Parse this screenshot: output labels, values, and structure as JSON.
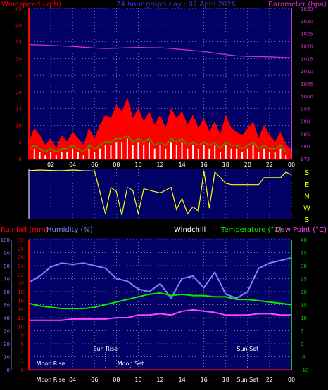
{
  "header": {
    "left_label": "Windspeed (kph)",
    "center_label": "24 hour graph day : 07 April 2026",
    "right_label": "Barometer (hpa)"
  },
  "colors": {
    "plot_bg": "#000066",
    "grid": "#aaaaaa",
    "wind_gust": "#ff0000",
    "wind_avg": "#ffffff",
    "wind_avg_line": "#00cc00",
    "barometer": "#cc33cc",
    "direction": "#ffff00",
    "humidity": "#8080ff",
    "temperature": "#00ee00",
    "dew_point": "#ff44ff",
    "windchill": "#ffffff",
    "rainfall": "#ff0000",
    "left_axis": "#ff0000",
    "right_axis_bottom": "#00cc00",
    "humidity_axis": "#8080ff"
  },
  "chart_data": [
    {
      "type": "area",
      "name": "wind-barometer",
      "x_ticks": [
        "02",
        "04",
        "06",
        "08",
        "10",
        "12",
        "14",
        "16",
        "18",
        "20",
        "22",
        "00"
      ],
      "left_axis": {
        "label": "Windspeed (kph)",
        "range": [
          0,
          45
        ],
        "ticks": [
          0,
          5,
          10,
          15,
          20,
          25,
          30,
          35,
          40,
          45
        ]
      },
      "right_axis": {
        "label": "Barometer (hpa)",
        "range": [
          975,
          1035
        ],
        "ticks": [
          975,
          980,
          985,
          990,
          995,
          1000,
          1005,
          1010,
          1015,
          1020,
          1025,
          1030,
          1035
        ]
      },
      "barometer_hours": [
        0,
        1,
        2,
        3,
        4,
        5,
        6,
        7,
        8,
        9,
        10,
        11,
        12,
        13,
        14,
        15,
        16,
        17,
        18,
        19,
        20,
        21,
        22,
        23,
        24
      ],
      "barometer": [
        1020.5,
        1020.4,
        1020.2,
        1020.0,
        1019.8,
        1019.5,
        1019.2,
        1019.0,
        1019.1,
        1019.3,
        1019.4,
        1019.3,
        1019.3,
        1019.0,
        1018.6,
        1018.2,
        1017.8,
        1017.2,
        1016.6,
        1016.1,
        1015.9,
        1015.8,
        1015.7,
        1015.5,
        1015.3
      ],
      "wind_hours": [
        0,
        0.5,
        1,
        1.5,
        2,
        2.5,
        3,
        3.5,
        4,
        4.5,
        5,
        5.5,
        6,
        6.5,
        7,
        7.5,
        8,
        8.5,
        9,
        9.5,
        10,
        10.5,
        11,
        11.5,
        12,
        12.5,
        13,
        13.5,
        14,
        14.5,
        15,
        15.5,
        16,
        16.5,
        17,
        17.5,
        18,
        18.5,
        19,
        19.5,
        20,
        20.5,
        21,
        21.5,
        22,
        22.5,
        23,
        23.5,
        24
      ],
      "wind_gust": [
        5,
        9,
        7,
        4,
        6,
        3,
        7,
        5,
        8,
        6,
        4,
        9,
        6,
        10,
        13,
        12,
        16,
        14,
        18,
        12,
        15,
        11,
        14,
        10,
        13,
        9,
        15,
        12,
        14,
        10,
        13,
        9,
        12,
        8,
        11,
        7,
        13,
        9,
        8,
        7,
        9,
        11,
        6,
        10,
        7,
        5,
        8,
        4,
        3
      ],
      "wind_avg": [
        2,
        3,
        2,
        1,
        2,
        1,
        2,
        2,
        3,
        2,
        1,
        3,
        2,
        3,
        4,
        4,
        5,
        5,
        6,
        4,
        5,
        4,
        5,
        3,
        4,
        3,
        5,
        4,
        5,
        3,
        4,
        3,
        4,
        3,
        4,
        2,
        4,
        3,
        3,
        2,
        3,
        4,
        2,
        3,
        2,
        2,
        3,
        1,
        1
      ]
    },
    {
      "type": "scatter",
      "name": "wind-direction",
      "right_labels": [
        "S",
        "E",
        "N",
        "W",
        "S"
      ],
      "hours": [
        0,
        1,
        2,
        3,
        4,
        5,
        6,
        7,
        7.5,
        8,
        8.5,
        9,
        9.5,
        10,
        10.5,
        11,
        11.5,
        12,
        12.5,
        13,
        13.5,
        14,
        14.5,
        15,
        15.5,
        16,
        16.5,
        17,
        17.5,
        18,
        18.5,
        19,
        19.5,
        20,
        20.5,
        21,
        21.5,
        22,
        22.5,
        23,
        23.5,
        24
      ],
      "direction_deg": [
        350,
        355,
        352,
        350,
        355,
        350,
        348,
        40,
        230,
        200,
        30,
        230,
        210,
        40,
        220,
        210,
        200,
        190,
        210,
        230,
        70,
        150,
        40,
        90,
        60,
        350,
        80,
        340,
        300,
        260,
        250,
        250,
        250,
        250,
        250,
        250,
        300,
        300,
        300,
        300,
        340,
        320
      ]
    },
    {
      "type": "line",
      "name": "temp-humidity",
      "header": {
        "rainfall_label": "Rainfall (mm)",
        "humidity_label": "Humidity (%)",
        "windchill_label": "Windchill",
        "temperature_label": "Temperature (°C)",
        "dewpoint_label": "Dew Point (°C)"
      },
      "x_ticks": [
        "Moon Rise",
        "04",
        "06",
        "08",
        "10",
        "12",
        "14",
        "16",
        "18",
        "Sun Set",
        "22",
        "00"
      ],
      "humidity_axis": {
        "range": [
          0,
          100
        ],
        "ticks": [
          0,
          10,
          20,
          30,
          40,
          50,
          60,
          70,
          80,
          90,
          100
        ]
      },
      "rainfall_axis": {
        "range": [
          0,
          30
        ],
        "ticks": [
          0,
          2,
          4,
          6,
          8,
          10,
          12,
          14,
          16,
          18,
          20,
          22,
          24,
          26,
          28,
          30
        ]
      },
      "temperature_axis": {
        "range": [
          -10,
          40
        ],
        "ticks": [
          -10,
          -5,
          0,
          5,
          10,
          15,
          20,
          25,
          30,
          35,
          40
        ]
      },
      "events": [
        {
          "label": "Moon Rise",
          "hour": 2.0,
          "row": "low"
        },
        {
          "label": "Sun Rise",
          "hour": 7.0,
          "row": "high"
        },
        {
          "label": "Moon Set",
          "hour": 9.3,
          "row": "low"
        },
        {
          "label": "Sun Set",
          "hour": 20.0,
          "row": "high"
        }
      ],
      "hours": [
        0,
        1,
        2,
        3,
        4,
        5,
        6,
        7,
        8,
        9,
        10,
        11,
        12,
        13,
        14,
        15,
        16,
        17,
        18,
        19,
        20,
        21,
        22,
        23,
        24
      ],
      "humidity": [
        67,
        72,
        79,
        82,
        81,
        82,
        80,
        78,
        70,
        68,
        62,
        60,
        66,
        55,
        70,
        72,
        63,
        75,
        58,
        55,
        60,
        78,
        82,
        84,
        86
      ],
      "temperature": [
        15.5,
        14.5,
        14,
        13.5,
        13.5,
        13.5,
        14,
        15,
        16,
        17,
        18,
        19,
        19.5,
        18.5,
        19,
        18.5,
        18.5,
        18,
        18,
        17,
        17,
        16.5,
        16,
        15.5,
        15
      ],
      "dew_point": [
        9,
        9,
        9,
        9,
        9.5,
        9.5,
        9.5,
        9.5,
        10,
        10,
        11,
        11,
        11.5,
        11,
        12.5,
        13,
        12.5,
        12,
        11,
        11,
        11,
        11.5,
        11.5,
        11,
        11
      ],
      "rainfall": [
        0,
        0,
        0,
        0,
        0,
        0,
        0,
        0,
        0,
        0,
        0,
        0,
        0,
        0,
        0,
        0,
        0,
        0,
        0,
        0,
        0,
        0,
        0,
        0,
        0
      ]
    }
  ]
}
